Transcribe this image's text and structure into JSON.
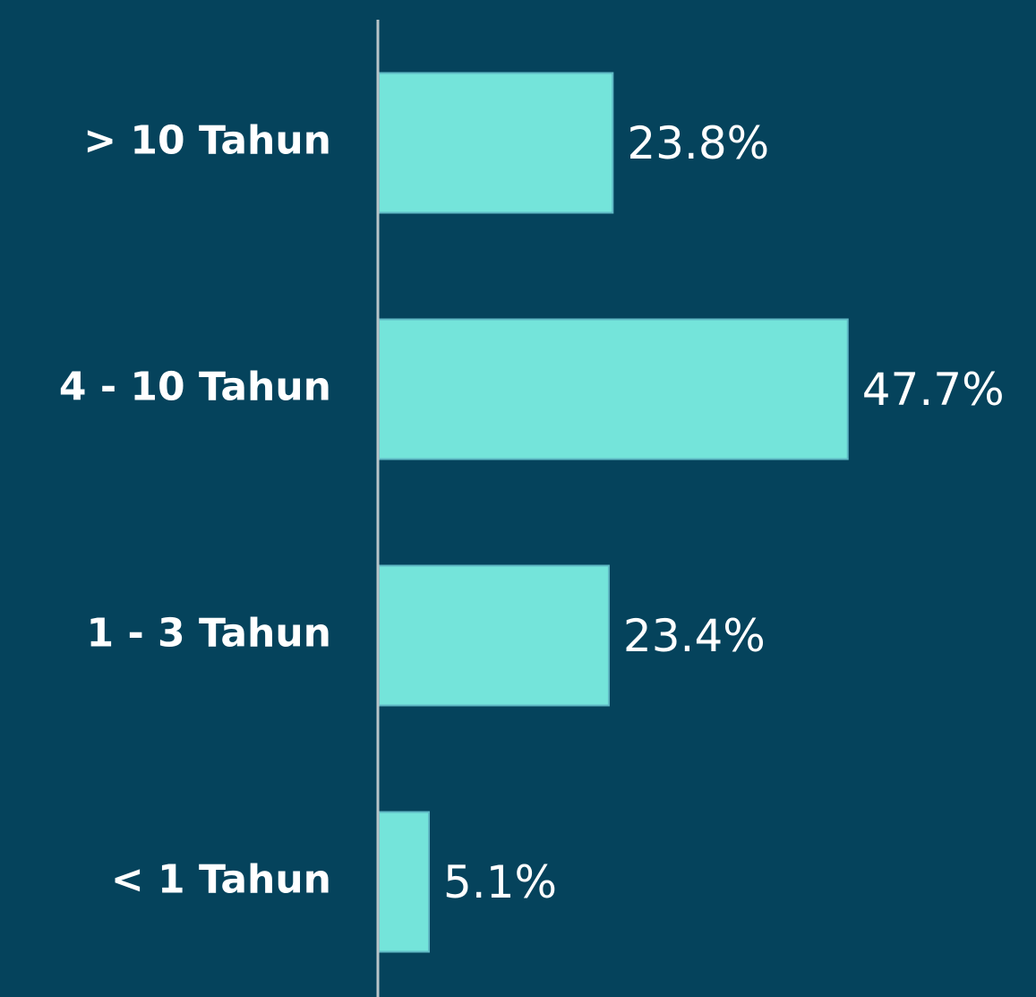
{
  "chart_data": {
    "type": "barh",
    "categories": [
      "> 10 Tahun",
      "4 - 10 Tahun",
      "1 - 3 Tahun",
      "< 1 Tahun"
    ],
    "values": [
      23.8,
      47.7,
      23.4,
      5.1
    ],
    "value_labels": [
      "23.8%",
      "47.7%",
      "23.4%",
      "5.1%"
    ],
    "color": "#74e4da"
  }
}
